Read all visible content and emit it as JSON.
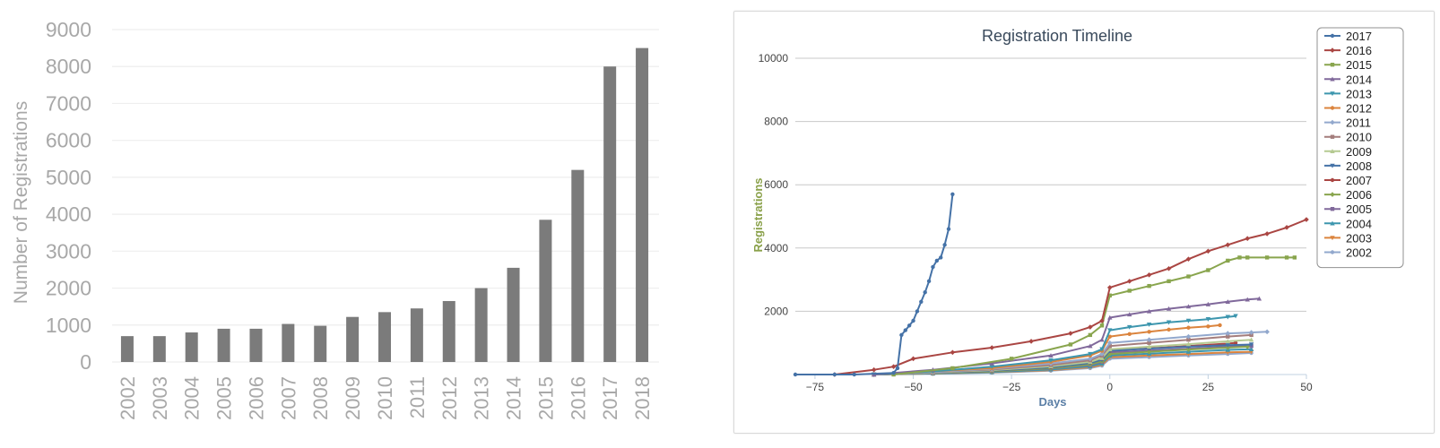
{
  "chart_data": [
    {
      "type": "bar",
      "title": "",
      "xlabel": "",
      "ylabel": "Number of Registrations",
      "categories": [
        "2002",
        "2003",
        "2004",
        "2005",
        "2006",
        "2007",
        "2008",
        "2009",
        "2010",
        "2011",
        "2012",
        "2013",
        "2014",
        "2015",
        "2016",
        "2017",
        "2018"
      ],
      "values": [
        700,
        700,
        800,
        900,
        900,
        1030,
        980,
        1220,
        1350,
        1450,
        1650,
        2000,
        2550,
        3850,
        5200,
        8000,
        8500
      ],
      "ylim": [
        0,
        9000
      ],
      "yticks": [
        "0",
        "1000",
        "2000",
        "3000",
        "4000",
        "5000",
        "6000",
        "7000",
        "8000",
        "9000"
      ],
      "grid": true,
      "bar_color": "#7b7b7b",
      "grid_color": "#eeeeee",
      "label_color": "#a8a8a8"
    },
    {
      "type": "line",
      "title": "Registration Timeline",
      "xlabel": "Days",
      "ylabel": "Registrations",
      "xlim": [
        -80,
        50
      ],
      "ylim": [
        0,
        10000
      ],
      "xticks": [
        "−75",
        "−50",
        "−25",
        "0",
        "25",
        "50"
      ],
      "yticks": [
        "2000",
        "4000",
        "6000",
        "8000",
        "10000"
      ],
      "grid": true,
      "legend": "top-right",
      "title_color": "#3a4a5c",
      "xlabel_color": "#5b7fa6",
      "ylabel_color": "#8aa14a",
      "series": [
        {
          "name": "2017",
          "color": "#4572a7",
          "marker": "circle",
          "x": [
            -80,
            -70,
            -65,
            -55,
            -54,
            -53,
            -52,
            -51,
            -50,
            -49,
            -48,
            -47,
            -46,
            -45,
            -44,
            -43,
            -42,
            -41,
            -40
          ],
          "y": [
            0,
            0,
            0,
            50,
            200,
            1250,
            1400,
            1550,
            1700,
            2000,
            2300,
            2600,
            2950,
            3400,
            3600,
            3700,
            4100,
            4600,
            5700
          ]
        },
        {
          "name": "2016",
          "color": "#aa4643",
          "marker": "diamond",
          "x": [
            -70,
            -60,
            -55,
            -50,
            -40,
            -30,
            -20,
            -10,
            -5,
            -2,
            0,
            5,
            10,
            15,
            20,
            25,
            30,
            35,
            40,
            45,
            50
          ],
          "y": [
            0,
            150,
            250,
            500,
            700,
            850,
            1050,
            1300,
            1500,
            1700,
            2750,
            2950,
            3150,
            3350,
            3650,
            3900,
            4100,
            4300,
            4450,
            4650,
            4900
          ]
        },
        {
          "name": "2015",
          "color": "#89a54e",
          "marker": "square",
          "x": [
            -55,
            -40,
            -25,
            -10,
            -5,
            -2,
            0,
            5,
            10,
            15,
            20,
            25,
            30,
            33,
            35,
            40,
            45,
            47
          ],
          "y": [
            0,
            200,
            500,
            950,
            1250,
            1550,
            2500,
            2650,
            2800,
            2950,
            3100,
            3300,
            3600,
            3700,
            3700,
            3700,
            3700,
            3700
          ]
        },
        {
          "name": "2014",
          "color": "#80699b",
          "marker": "triangle",
          "x": [
            -60,
            -45,
            -30,
            -15,
            -5,
            -2,
            0,
            5,
            10,
            15,
            20,
            25,
            30,
            35,
            38
          ],
          "y": [
            0,
            150,
            350,
            600,
            900,
            1100,
            1800,
            1900,
            2000,
            2080,
            2150,
            2220,
            2300,
            2370,
            2400
          ]
        },
        {
          "name": "2013",
          "color": "#3d96ae",
          "marker": "triangle-down",
          "x": [
            -60,
            -45,
            -30,
            -15,
            -5,
            -2,
            0,
            5,
            10,
            15,
            20,
            25,
            30,
            32
          ],
          "y": [
            0,
            100,
            250,
            450,
            650,
            800,
            1400,
            1500,
            1580,
            1650,
            1700,
            1750,
            1820,
            1850
          ]
        },
        {
          "name": "2012",
          "color": "#db843d",
          "marker": "circle",
          "x": [
            -60,
            -45,
            -30,
            -15,
            -5,
            -2,
            0,
            5,
            10,
            15,
            20,
            25,
            28
          ],
          "y": [
            0,
            100,
            200,
            400,
            600,
            750,
            1200,
            1280,
            1350,
            1420,
            1480,
            1520,
            1560
          ]
        },
        {
          "name": "2011",
          "color": "#92a8cd",
          "marker": "diamond",
          "x": [
            -60,
            -45,
            -30,
            -15,
            -5,
            -2,
            0,
            10,
            20,
            30,
            36,
            40
          ],
          "y": [
            0,
            80,
            180,
            350,
            500,
            650,
            1000,
            1100,
            1200,
            1300,
            1330,
            1350
          ]
        },
        {
          "name": "2010",
          "color": "#a47d7c",
          "marker": "square",
          "x": [
            -60,
            -45,
            -30,
            -15,
            -5,
            -2,
            0,
            10,
            20,
            30,
            36
          ],
          "y": [
            0,
            70,
            160,
            300,
            450,
            600,
            900,
            1000,
            1100,
            1200,
            1250
          ]
        },
        {
          "name": "2009",
          "color": "#b5ca92",
          "marker": "triangle",
          "x": [
            -60,
            -45,
            -30,
            -15,
            -5,
            -2,
            0,
            10,
            20,
            30,
            36
          ],
          "y": [
            0,
            60,
            140,
            260,
            400,
            520,
            800,
            880,
            960,
            1050,
            1100
          ]
        },
        {
          "name": "2008",
          "color": "#4572a7",
          "marker": "triangle-down",
          "x": [
            -60,
            -45,
            -30,
            -15,
            -5,
            -2,
            0,
            10,
            20,
            30,
            36
          ],
          "y": [
            0,
            50,
            120,
            230,
            360,
            470,
            750,
            820,
            880,
            930,
            950
          ]
        },
        {
          "name": "2007",
          "color": "#aa4643",
          "marker": "circle",
          "x": [
            -60,
            -45,
            -30,
            -15,
            -5,
            -2,
            0,
            10,
            20,
            30,
            32
          ],
          "y": [
            0,
            50,
            120,
            230,
            370,
            480,
            750,
            830,
            900,
            980,
            1000
          ]
        },
        {
          "name": "2006",
          "color": "#89a54e",
          "marker": "diamond",
          "x": [
            -60,
            -45,
            -30,
            -15,
            -5,
            -2,
            0,
            10,
            20,
            30,
            35
          ],
          "y": [
            0,
            40,
            100,
            200,
            320,
            420,
            650,
            720,
            790,
            850,
            880
          ]
        },
        {
          "name": "2005",
          "color": "#80699b",
          "marker": "square",
          "x": [
            -60,
            -45,
            -30,
            -15,
            -5,
            -2,
            0,
            10,
            20,
            30,
            36
          ],
          "y": [
            0,
            40,
            100,
            190,
            300,
            400,
            700,
            760,
            820,
            880,
            900
          ]
        },
        {
          "name": "2004",
          "color": "#3d96ae",
          "marker": "triangle",
          "x": [
            -60,
            -45,
            -30,
            -15,
            -5,
            -2,
            0,
            10,
            20,
            30,
            36
          ],
          "y": [
            0,
            30,
            80,
            160,
            260,
            350,
            600,
            660,
            720,
            780,
            800
          ]
        },
        {
          "name": "2003",
          "color": "#db843d",
          "marker": "triangle-down",
          "x": [
            -60,
            -45,
            -30,
            -15,
            -5,
            -2,
            0,
            10,
            20,
            30,
            36
          ],
          "y": [
            0,
            30,
            70,
            140,
            230,
            310,
            550,
            600,
            650,
            700,
            720
          ]
        },
        {
          "name": "2002",
          "color": "#92a8cd",
          "marker": "circle",
          "x": [
            -60,
            -45,
            -30,
            -15,
            -5,
            -2,
            0,
            10,
            20,
            30,
            36
          ],
          "y": [
            0,
            25,
            60,
            120,
            200,
            280,
            500,
            550,
            600,
            650,
            680
          ]
        }
      ]
    }
  ]
}
